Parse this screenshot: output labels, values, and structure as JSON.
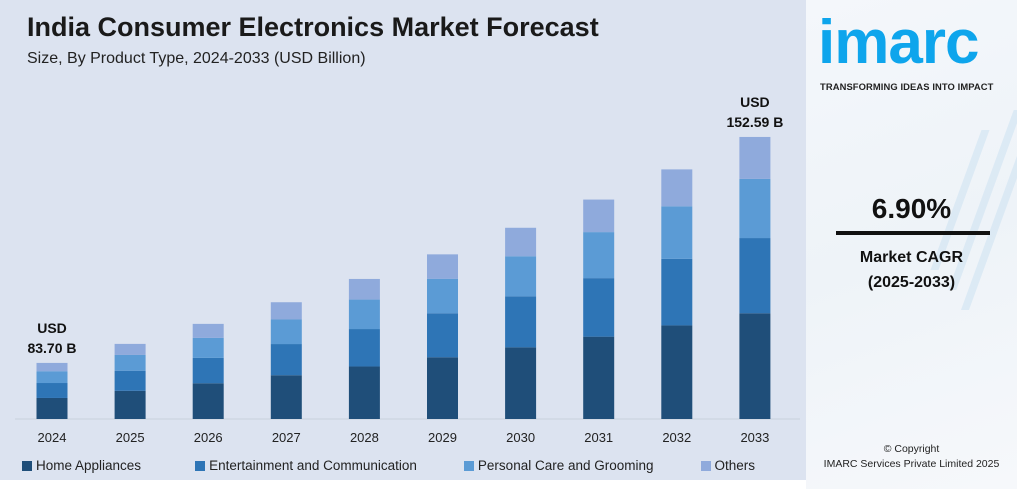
{
  "header": {
    "title": "India Consumer Electronics Market Forecast",
    "subtitle": "Size, By Product Type, 2024-2033 (USD Billion)"
  },
  "chart_data": {
    "type": "bar",
    "stacked": true,
    "title": "India Consumer Electronics Market Forecast",
    "subtitle": "Size, By Product Type, 2024-2033 (USD Billion)",
    "categories": [
      "2024",
      "2025",
      "2026",
      "2027",
      "2028",
      "2029",
      "2030",
      "2031",
      "2032",
      "2033"
    ],
    "totals": [
      83.7,
      89.5,
      95.6,
      102.2,
      109.3,
      116.8,
      124.9,
      133.5,
      142.7,
      152.59
    ],
    "series": [
      {
        "name": "Home Appliances",
        "color": "#1f4e79",
        "values": [
          31.4,
          33.6,
          35.9,
          38.3,
          41.0,
          43.8,
          46.8,
          50.1,
          53.5,
          57.2
        ]
      },
      {
        "name": "Entertainment and Communication",
        "color": "#2e75b6",
        "values": [
          22.3,
          23.9,
          25.5,
          27.3,
          29.2,
          31.2,
          33.3,
          35.6,
          38.1,
          40.7
        ]
      },
      {
        "name": "Personal Care and Grooming",
        "color": "#5b9bd5",
        "values": [
          17.6,
          18.8,
          20.1,
          21.5,
          23.0,
          24.5,
          26.2,
          28.0,
          30.0,
          32.0
        ]
      },
      {
        "name": "Others",
        "color": "#8faadc",
        "values": [
          12.4,
          13.2,
          14.1,
          15.1,
          16.1,
          17.3,
          18.6,
          19.8,
          21.1,
          22.7
        ]
      }
    ],
    "annotations": [
      {
        "category": "2024",
        "line1": "USD",
        "line2": "83.70 B"
      },
      {
        "category": "2033",
        "line1": "USD",
        "line2": "152.59 B"
      }
    ],
    "xlabel": "",
    "ylabel": "",
    "grid": false,
    "legend": "bottom",
    "y_axis_shown": false
  },
  "sidebar": {
    "logo": "imarc",
    "tagline": "TRANSFORMING IDEAS INTO IMPACT",
    "cagr_value": "6.90%",
    "cagr_label": "Market CAGR",
    "cagr_period": "(2025-2033)",
    "copyright_line1": "© Copyright",
    "copyright_line2": "IMARC Services Private Limited 2025"
  }
}
